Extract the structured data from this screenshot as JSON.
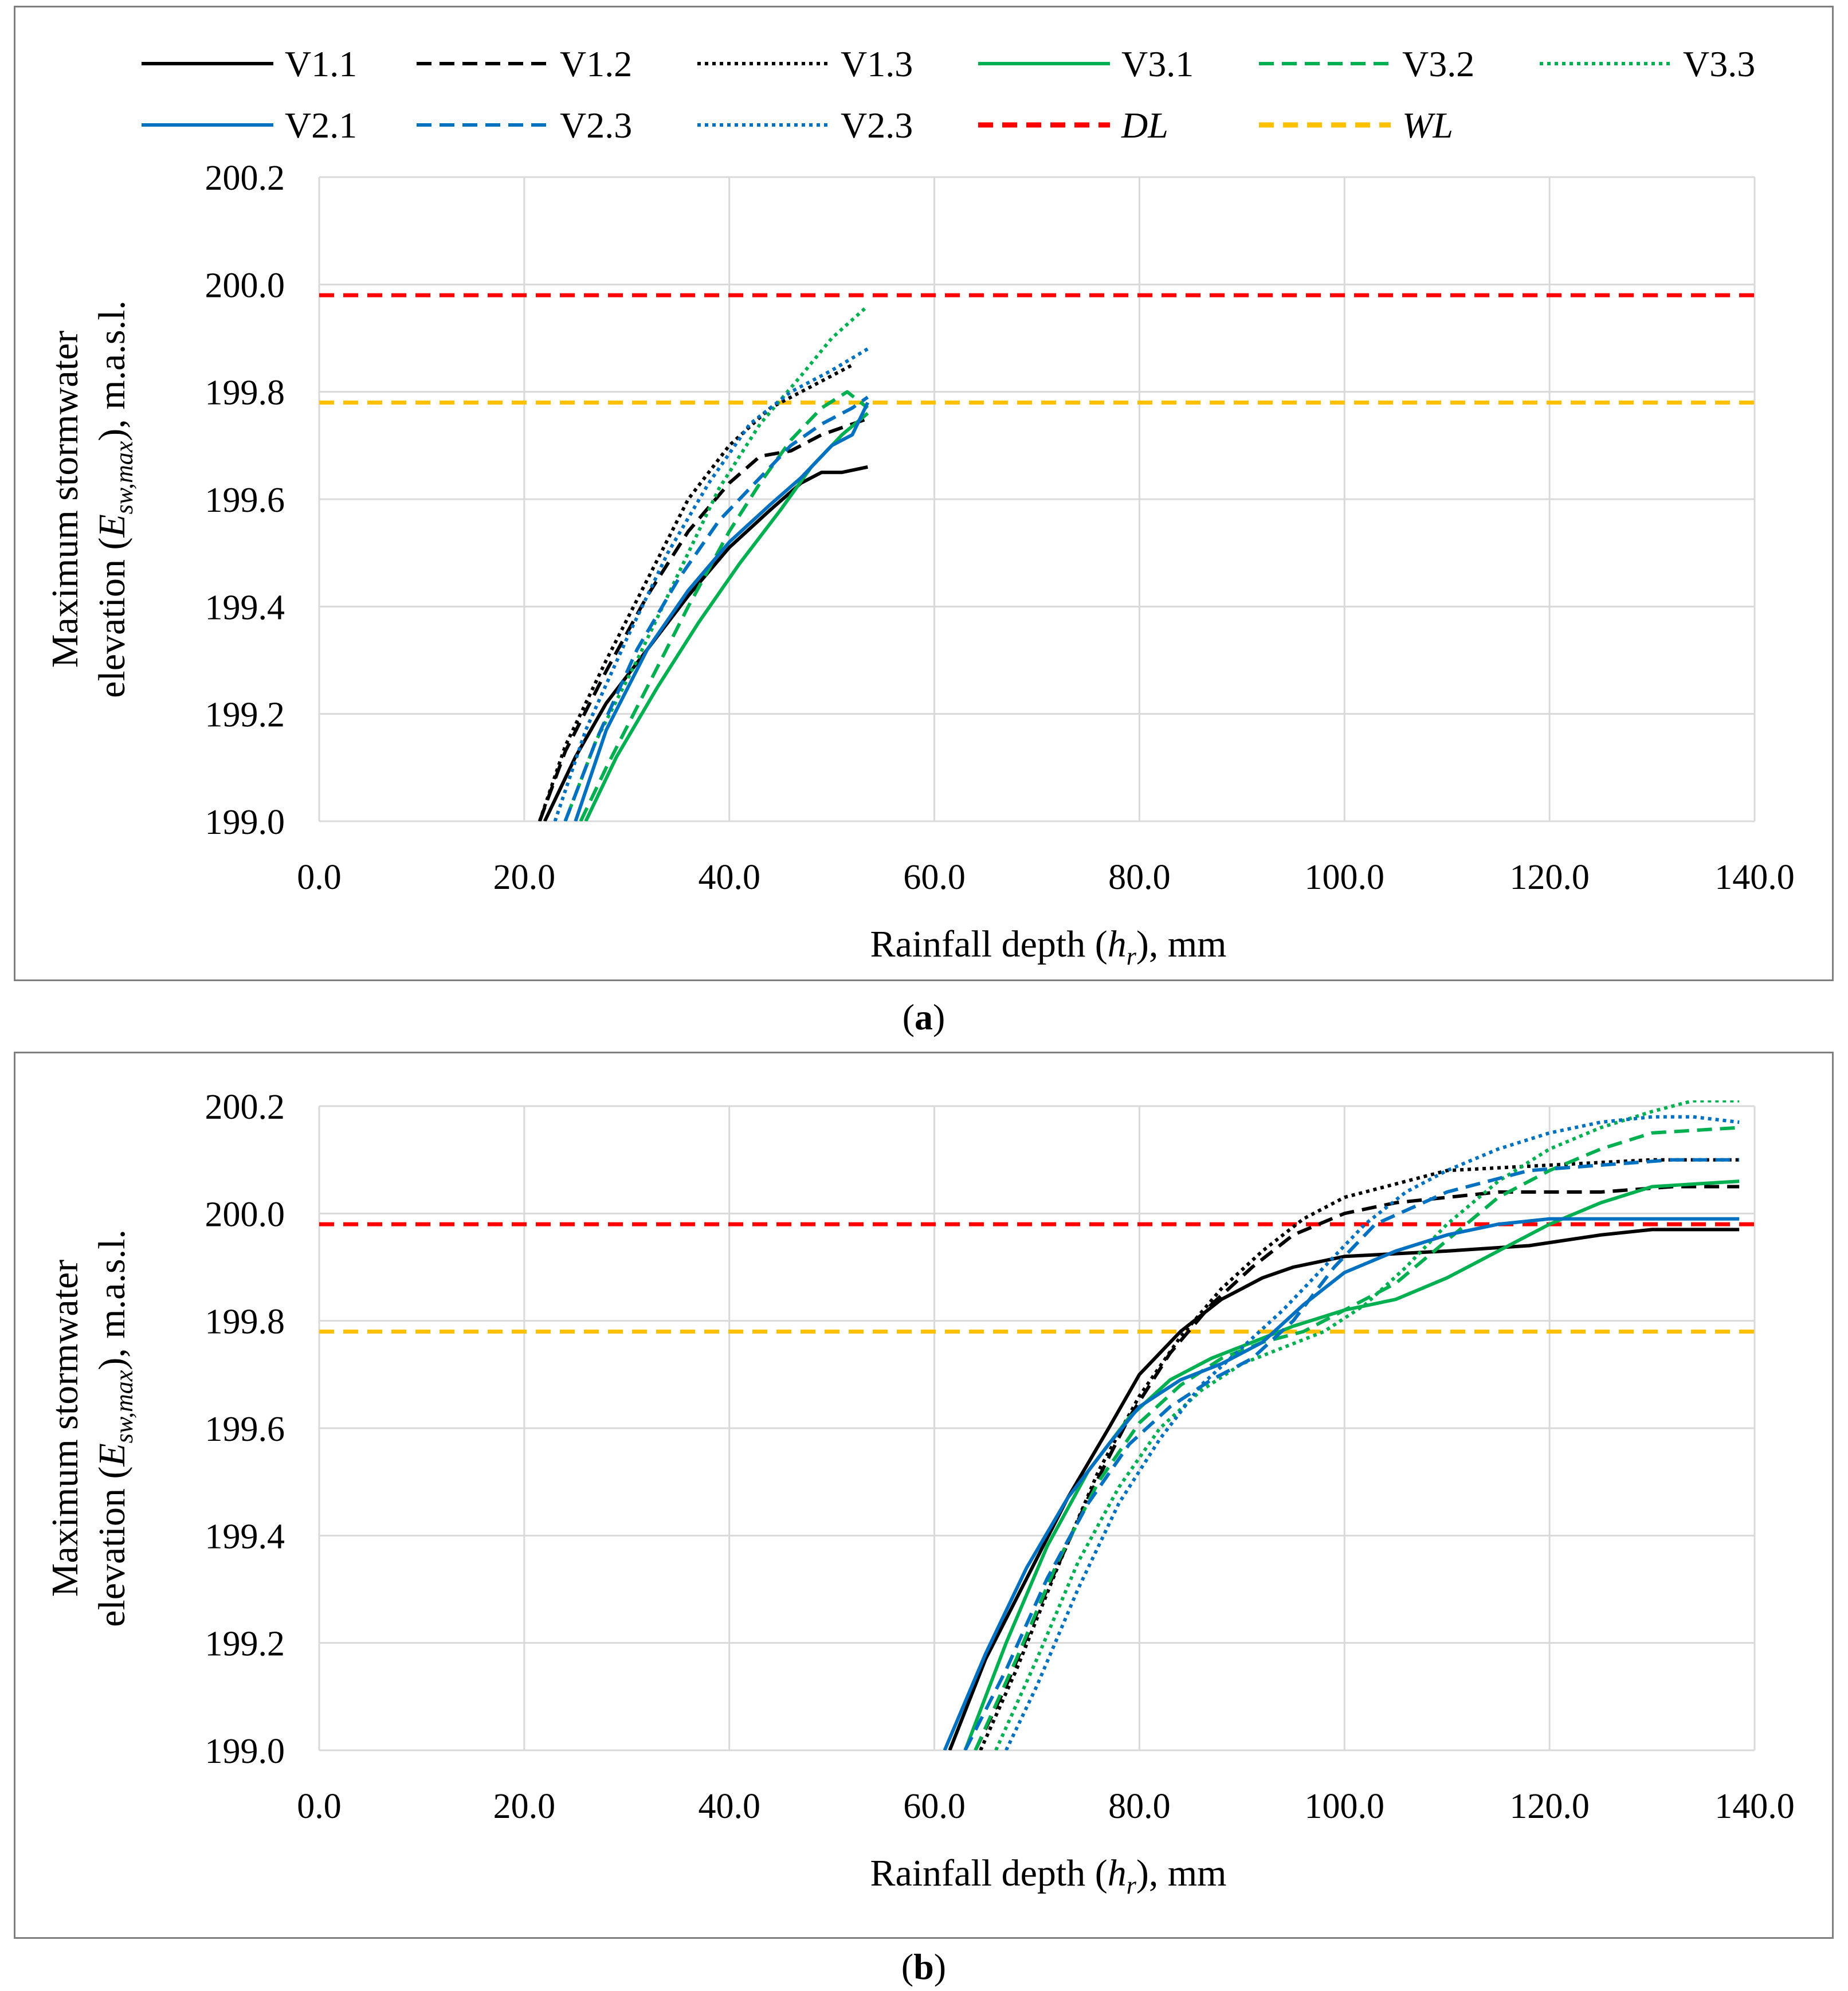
{
  "legend": [
    {
      "name": "V1.1",
      "color": "#000000",
      "dash": "solid",
      "italic": false
    },
    {
      "name": "V1.2",
      "color": "#000000",
      "dash": "dashed",
      "italic": false
    },
    {
      "name": "V1.3",
      "color": "#000000",
      "dash": "dotted",
      "italic": false
    },
    {
      "name": "V3.1",
      "color": "#00b050",
      "dash": "solid",
      "italic": false
    },
    {
      "name": "V3.2",
      "color": "#00b050",
      "dash": "dashed",
      "italic": false
    },
    {
      "name": "V3.3",
      "color": "#00b050",
      "dash": "dotted",
      "italic": false
    },
    {
      "name": "V2.1",
      "color": "#0070c0",
      "dash": "solid",
      "italic": false
    },
    {
      "name": "V2.3",
      "color": "#0070c0",
      "dash": "dashed",
      "italic": false
    },
    {
      "name": "V2.3",
      "color": "#0070c0",
      "dash": "dotted",
      "italic": false
    },
    {
      "name": "DL",
      "color": "#ff0000",
      "dash": "dashed-thick",
      "italic": true
    },
    {
      "name": "WL",
      "color": "#ffc000",
      "dash": "dashed-thick",
      "italic": true
    }
  ],
  "labels": {
    "a": "a",
    "b": "b",
    "ylabel_line1": "Maximum stormwater",
    "ylabel_line2_prefix": "elevation (",
    "ylabel_E": "E",
    "ylabel_sub": "sw,max",
    "ylabel_line2_suffix": "), m.a.s.l.",
    "xlabel_prefix": "Rainfall depth (",
    "xlabel_h": "h",
    "xlabel_sub": "r",
    "xlabel_suffix": "), mm"
  },
  "chart_data": [
    {
      "id": "a",
      "type": "line",
      "xlabel": "Rainfall depth (hr), mm",
      "ylabel": "Maximum stormwater elevation (Esw,max), m.a.s.l.",
      "xlim": [
        0,
        140
      ],
      "ylim": [
        199.0,
        200.2
      ],
      "xticks": [
        "0.0",
        "20.0",
        "40.0",
        "60.0",
        "80.0",
        "100.0",
        "120.0",
        "140.0"
      ],
      "yticks": [
        "199.0",
        "199.2",
        "199.4",
        "199.6",
        "199.8",
        "200.0",
        "200.2"
      ],
      "grid": true,
      "hlines": [
        {
          "name": "DL",
          "y": 199.98
        },
        {
          "name": "WL",
          "y": 199.78
        }
      ],
      "series": [
        {
          "name": "V1.1",
          "x": [
            22,
            25,
            28,
            32,
            36,
            40,
            44,
            47,
            49,
            51,
            53.5
          ],
          "y": [
            199.0,
            199.12,
            199.22,
            199.32,
            199.42,
            199.51,
            199.58,
            199.63,
            199.65,
            199.65,
            199.66
          ]
        },
        {
          "name": "V1.2",
          "x": [
            21.5,
            24,
            28,
            32,
            36,
            40,
            43,
            46,
            49,
            52,
            53.5
          ],
          "y": [
            199.0,
            199.13,
            199.28,
            199.42,
            199.54,
            199.63,
            199.68,
            199.69,
            199.72,
            199.74,
            199.75
          ]
        },
        {
          "name": "V1.3",
          "x": [
            21.5,
            24,
            28,
            32,
            36,
            40,
            44,
            48,
            52
          ],
          "y": [
            199.0,
            199.14,
            199.3,
            199.45,
            199.6,
            199.7,
            199.77,
            199.81,
            199.85
          ]
        },
        {
          "name": "V3.1",
          "x": [
            26,
            29,
            33,
            37,
            41,
            45,
            48,
            51,
            53.5
          ],
          "y": [
            199.0,
            199.12,
            199.25,
            199.37,
            199.48,
            199.58,
            199.66,
            199.72,
            199.76
          ]
        },
        {
          "name": "V3.2",
          "x": [
            25.5,
            28,
            32,
            36,
            40,
            43,
            46,
            49,
            51.5,
            53.5
          ],
          "y": [
            199.0,
            199.1,
            199.25,
            199.4,
            199.54,
            199.63,
            199.71,
            199.77,
            199.8,
            199.77
          ]
        },
        {
          "name": "V3.3",
          "x": [
            24,
            27,
            31,
            35,
            39,
            43,
            47,
            50,
            53.5
          ],
          "y": [
            199.0,
            199.15,
            199.3,
            199.46,
            199.62,
            199.74,
            199.83,
            199.9,
            199.96
          ]
        },
        {
          "name": "V2.1",
          "x": [
            25,
            28,
            32,
            36,
            40,
            44,
            47,
            50,
            52,
            53.5
          ],
          "y": [
            199.0,
            199.17,
            199.32,
            199.43,
            199.52,
            199.59,
            199.64,
            199.7,
            199.72,
            199.78
          ]
        },
        {
          "name": "V2.3",
          "x": [
            24,
            27,
            31,
            35,
            39,
            43,
            46,
            49,
            52,
            53.5
          ],
          "y": [
            199.0,
            199.15,
            199.32,
            199.45,
            199.56,
            199.64,
            199.7,
            199.74,
            199.77,
            199.79
          ]
        },
        {
          "name": "V2.3",
          "x": [
            23,
            26,
            30,
            34,
            38,
            42,
            46,
            50,
            53.5
          ],
          "y": [
            199.0,
            199.17,
            199.34,
            199.5,
            199.63,
            199.74,
            199.8,
            199.84,
            199.88
          ]
        }
      ]
    },
    {
      "id": "b",
      "type": "line",
      "xlabel": "Rainfall depth (hr), mm",
      "ylabel": "Maximum stormwater elevation (Esw,max), m.a.s.l.",
      "xlim": [
        0,
        140
      ],
      "ylim": [
        199.0,
        200.2
      ],
      "xticks": [
        "0.0",
        "20.0",
        "40.0",
        "60.0",
        "80.0",
        "100.0",
        "120.0",
        "140.0"
      ],
      "yticks": [
        "199.0",
        "199.2",
        "199.4",
        "199.6",
        "199.8",
        "200.0",
        "200.2"
      ],
      "grid": true,
      "hlines": [
        {
          "name": "DL",
          "y": 199.98
        },
        {
          "name": "WL",
          "y": 199.78
        }
      ],
      "series": [
        {
          "name": "V1.1",
          "x": [
            61.5,
            65,
            69,
            73,
            77,
            80,
            84,
            88,
            92,
            95,
            100,
            110,
            118,
            125,
            130,
            138.5
          ],
          "y": [
            199.0,
            199.17,
            199.32,
            199.47,
            199.6,
            199.7,
            199.78,
            199.84,
            199.88,
            199.9,
            199.92,
            199.93,
            199.94,
            199.96,
            199.97,
            199.97
          ]
        },
        {
          "name": "V1.2",
          "x": [
            64,
            67,
            71,
            75,
            79,
            83,
            87,
            91,
            95,
            100,
            105,
            115,
            125,
            132,
            138.5
          ],
          "y": [
            199.0,
            199.12,
            199.3,
            199.47,
            199.62,
            199.74,
            199.83,
            199.9,
            199.96,
            200.0,
            200.02,
            200.04,
            200.04,
            200.05,
            200.05
          ]
        },
        {
          "name": "V1.3",
          "x": [
            64.5,
            68,
            72,
            76,
            80,
            84,
            88,
            92,
            96,
            100,
            104,
            110,
            120,
            130,
            138.5
          ],
          "y": [
            199.0,
            199.15,
            199.34,
            199.52,
            199.66,
            199.77,
            199.86,
            199.93,
            199.99,
            200.03,
            200.05,
            200.08,
            200.09,
            200.1,
            200.1
          ]
        },
        {
          "name": "V3.1",
          "x": [
            63,
            67,
            71,
            75,
            79,
            83,
            87,
            91,
            95,
            100,
            105,
            110,
            115,
            120,
            125,
            130,
            138.5
          ],
          "y": [
            199.0,
            199.2,
            199.38,
            199.52,
            199.62,
            199.69,
            199.73,
            199.76,
            199.79,
            199.82,
            199.84,
            199.88,
            199.93,
            199.98,
            200.02,
            200.05,
            200.06
          ]
        },
        {
          "name": "V3.2",
          "x": [
            64,
            68,
            72,
            76,
            80,
            84,
            88,
            92,
            96,
            100,
            105,
            110,
            115,
            120,
            125,
            130,
            138.5
          ],
          "y": [
            199.0,
            199.17,
            199.35,
            199.5,
            199.61,
            199.68,
            199.73,
            199.76,
            199.78,
            199.82,
            199.87,
            199.95,
            200.03,
            200.08,
            200.12,
            200.15,
            200.16
          ]
        },
        {
          "name": "V3.3",
          "x": [
            66,
            70,
            74,
            78,
            82,
            86,
            90,
            94,
            98,
            102,
            106,
            110,
            115,
            120,
            125,
            130,
            134,
            138.5
          ],
          "y": [
            199.0,
            199.17,
            199.35,
            199.49,
            199.6,
            199.67,
            199.72,
            199.75,
            199.78,
            199.83,
            199.9,
            199.98,
            200.06,
            200.12,
            200.16,
            200.19,
            200.21,
            200.21
          ]
        },
        {
          "name": "V2.1",
          "x": [
            61,
            65,
            69,
            73,
            77,
            80,
            84,
            88,
            92,
            96,
            100,
            105,
            110,
            115,
            120,
            130,
            138.5
          ],
          "y": [
            199.0,
            199.18,
            199.34,
            199.47,
            199.57,
            199.64,
            199.69,
            199.72,
            199.76,
            199.83,
            199.89,
            199.93,
            199.96,
            199.98,
            199.99,
            199.99,
            199.99
          ]
        },
        {
          "name": "V2.3",
          "x": [
            63,
            67,
            71,
            75,
            79,
            83,
            87,
            91,
            95,
            99,
            103,
            110,
            118,
            125,
            132,
            138.5
          ],
          "y": [
            199.0,
            199.15,
            199.32,
            199.46,
            199.57,
            199.64,
            199.69,
            199.73,
            199.8,
            199.9,
            199.98,
            200.04,
            200.08,
            200.09,
            200.1,
            200.1
          ]
        },
        {
          "name": "V2.3",
          "x": [
            67,
            70,
            74,
            78,
            82,
            86,
            90,
            94,
            98,
            102,
            106,
            110,
            115,
            120,
            125,
            130,
            134,
            138.5
          ],
          "y": [
            199.0,
            199.12,
            199.3,
            199.46,
            199.58,
            199.68,
            199.75,
            199.82,
            199.9,
            199.98,
            200.04,
            200.08,
            200.12,
            200.15,
            200.17,
            200.18,
            200.18,
            200.17
          ]
        }
      ]
    }
  ]
}
